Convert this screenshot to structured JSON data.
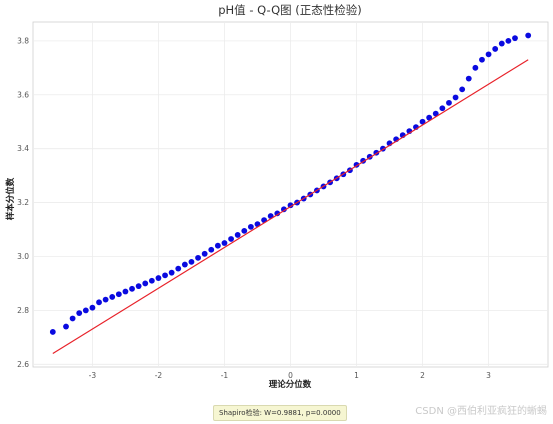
{
  "chart_data": {
    "type": "scatter",
    "title": "pH值 - Q-Q图 (正态性检验)",
    "xlabel": "理论分位数",
    "ylabel": "样本分位数",
    "xlim": [
      -3.9,
      3.9
    ],
    "ylim": [
      2.59,
      3.87
    ],
    "x_ticks": [
      -3,
      -2,
      -1,
      0,
      1,
      2,
      3
    ],
    "y_ticks": [
      2.6,
      2.8,
      3.0,
      3.2,
      3.4,
      3.6,
      3.8
    ],
    "grid": true,
    "colors": {
      "points": "#0a0ae0",
      "fit_line": "#e8222a"
    },
    "series": [
      {
        "kind": "points",
        "x": [
          -3.6,
          -3.4,
          -3.3,
          -3.2,
          -3.1,
          -3.0,
          -2.9,
          -2.8,
          -2.7,
          -2.6,
          -2.5,
          -2.4,
          -2.3,
          -2.2,
          -2.1,
          -2.0,
          -1.9,
          -1.8,
          -1.7,
          -1.6,
          -1.5,
          -1.4,
          -1.3,
          -1.2,
          -1.1,
          -1.0,
          -0.9,
          -0.8,
          -0.7,
          -0.6,
          -0.5,
          -0.4,
          -0.3,
          -0.2,
          -0.1,
          0.0,
          0.1,
          0.2,
          0.3,
          0.4,
          0.5,
          0.6,
          0.7,
          0.8,
          0.9,
          1.0,
          1.1,
          1.2,
          1.3,
          1.4,
          1.5,
          1.6,
          1.7,
          1.8,
          1.9,
          2.0,
          2.1,
          2.2,
          2.3,
          2.4,
          2.5,
          2.6,
          2.7,
          2.8,
          2.9,
          3.0,
          3.1,
          3.2,
          3.3,
          3.4,
          3.6
        ],
        "y": [
          2.72,
          2.74,
          2.77,
          2.79,
          2.8,
          2.81,
          2.83,
          2.84,
          2.85,
          2.86,
          2.87,
          2.88,
          2.89,
          2.9,
          2.91,
          2.92,
          2.93,
          2.94,
          2.955,
          2.97,
          2.98,
          2.995,
          3.01,
          3.025,
          3.04,
          3.05,
          3.065,
          3.08,
          3.095,
          3.11,
          3.12,
          3.135,
          3.15,
          3.16,
          3.175,
          3.19,
          3.2,
          3.215,
          3.23,
          3.245,
          3.26,
          3.275,
          3.29,
          3.305,
          3.32,
          3.34,
          3.355,
          3.37,
          3.385,
          3.4,
          3.42,
          3.435,
          3.45,
          3.465,
          3.48,
          3.5,
          3.515,
          3.53,
          3.55,
          3.57,
          3.59,
          3.62,
          3.66,
          3.7,
          3.73,
          3.75,
          3.77,
          3.79,
          3.8,
          3.81,
          3.82
        ]
      },
      {
        "kind": "line",
        "x": [
          -3.6,
          3.6
        ],
        "y": [
          2.64,
          3.73
        ]
      }
    ]
  },
  "annotation": "Shapiro检验: W=0.9881, p=0.0000",
  "watermark": "CSDN @西伯利亚疯狂的蜥蜴"
}
